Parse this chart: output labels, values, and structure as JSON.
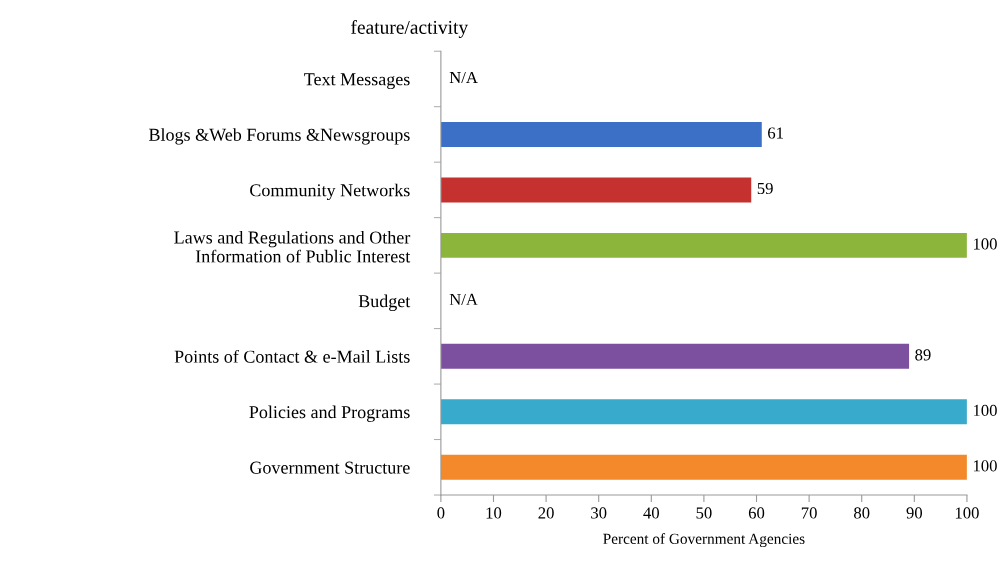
{
  "chart_data": {
    "type": "bar",
    "orientation": "horizontal",
    "title": "feature/activity",
    "xlabel": "Percent of Government Agencies",
    "categories": [
      "Text Messages",
      "Blogs &Web Forums &Newsgroups",
      "Community Networks",
      "Laws and Regulations and Other\nInformation of Public Interest",
      "Budget",
      "Points of Contact & e-Mail Lists",
      "Policies and Programs",
      "Government Structure"
    ],
    "values": [
      null,
      61,
      59,
      100,
      null,
      89,
      100,
      100
    ],
    "colors": [
      null,
      "#3b70c6",
      "#c4312f",
      "#8cb53c",
      null,
      "#7d4f9f",
      "#38aacb",
      "#f3892a"
    ],
    "value_labels": [
      "N/A",
      "61",
      "59",
      "100",
      "N/A",
      "89",
      "100",
      "100"
    ],
    "xlim": [
      0,
      100
    ],
    "xticks": [
      0,
      10,
      20,
      30,
      40,
      50,
      60,
      70,
      80,
      90,
      100
    ],
    "grid": false,
    "legend": false
  }
}
